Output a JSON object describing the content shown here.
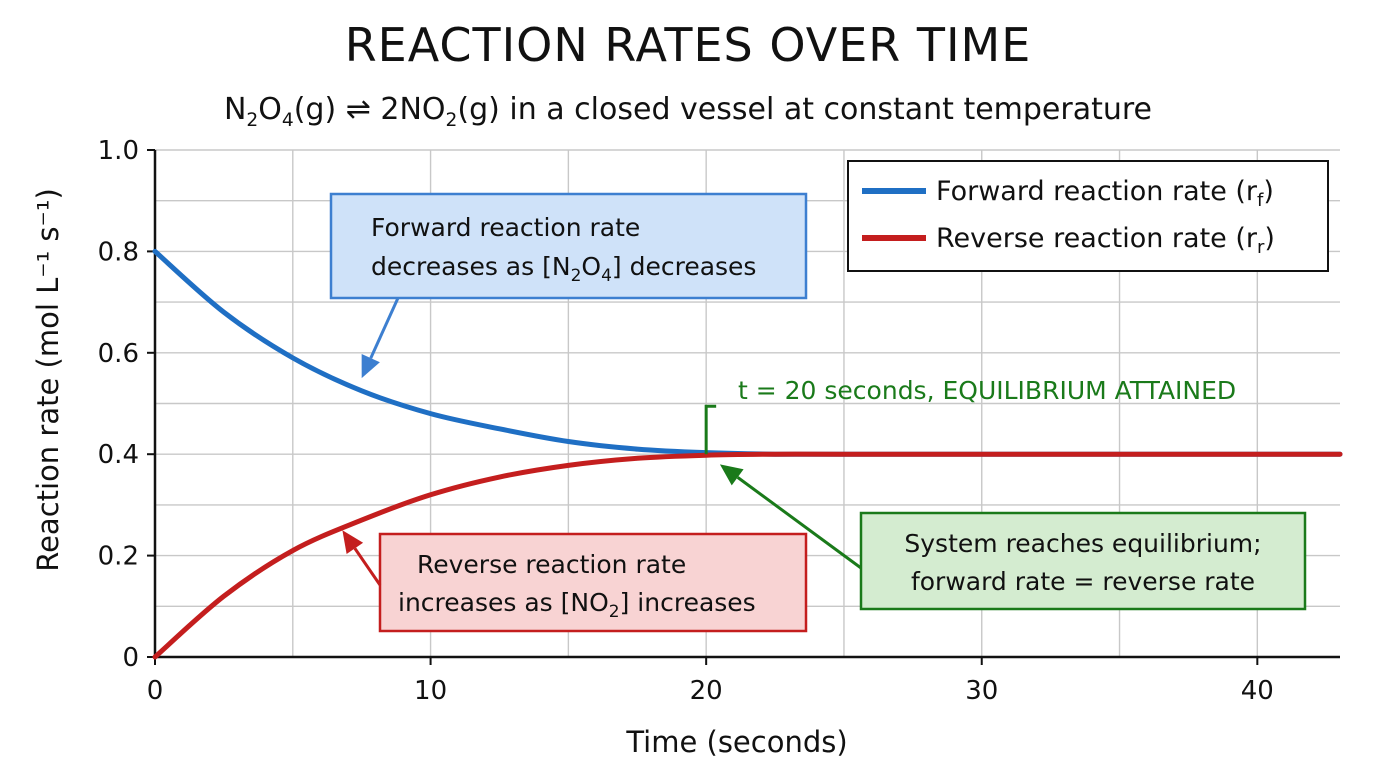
{
  "header": {
    "title": "REACTION RATES OVER TIME",
    "subtitle_html": "N<sub>2</sub>O<sub>4</sub>(g) ⇌ 2NO<sub>2</sub>(g) in a closed vessel at constant temperature"
  },
  "chart_data": {
    "type": "line",
    "title": "REACTION RATES OVER TIME",
    "xlabel": "Time (seconds)",
    "ylabel": "Reaction rate (mol L⁻¹ s⁻¹)",
    "xlim": [
      0,
      43
    ],
    "ylim": [
      0,
      1.0
    ],
    "x_ticks": [
      "0",
      "10",
      "20",
      "30",
      "40"
    ],
    "y_ticks": [
      "0",
      "0.2",
      "0.4",
      "0.6",
      "0.8",
      "1.0"
    ],
    "grid": true,
    "legend_position": "top-right",
    "series": [
      {
        "name": "Forward reaction rate (rf)",
        "color": "#1f6fc4",
        "x": [
          0,
          2.5,
          5,
          7.5,
          10,
          12.5,
          15,
          17.5,
          20,
          22.5,
          25,
          30,
          35,
          40,
          43
        ],
        "y": [
          0.8,
          0.68,
          0.59,
          0.525,
          0.48,
          0.45,
          0.425,
          0.41,
          0.403,
          0.4,
          0.4,
          0.4,
          0.4,
          0.4,
          0.4
        ]
      },
      {
        "name": "Reverse reaction rate (rr)",
        "color": "#c41e1e",
        "x": [
          0,
          2.5,
          5,
          7.5,
          10,
          12.5,
          15,
          17.5,
          20,
          22.5,
          25,
          30,
          35,
          40,
          43
        ],
        "y": [
          0.0,
          0.12,
          0.21,
          0.27,
          0.32,
          0.355,
          0.378,
          0.392,
          0.398,
          0.4,
          0.4,
          0.4,
          0.4,
          0.4,
          0.4
        ]
      }
    ],
    "legend": {
      "forward_main": "Forward reaction rate (r",
      "forward_sub": "f",
      "forward_close": ")",
      "reverse_main": "Reverse reaction rate (r",
      "reverse_sub": "r",
      "reverse_close": ")"
    },
    "annotations": {
      "forward_box": {
        "line1": "Forward reaction rate",
        "line2_a": "decreases as [N",
        "line2_sub1": "2",
        "line2_b": "O",
        "line2_sub2": "4",
        "line2_c": "] decreases",
        "fill": "#cfe2f9",
        "stroke": "#3d7fd0",
        "arrow_target": {
          "x": 7.5,
          "y": 0.55
        }
      },
      "reverse_box": {
        "line1": "Reverse reaction rate",
        "line2_a": "increases as [NO",
        "line2_sub": "2",
        "line2_b": "] increases",
        "fill": "#f8d3d3",
        "stroke": "#c41e1e",
        "arrow_target": {
          "x": 6.8,
          "y": 0.25
        }
      },
      "equilibrium_box": {
        "line1": "System reaches equilibrium;",
        "line2": "forward rate = reverse rate",
        "fill": "#d4ecd0",
        "stroke": "#1a7a1a",
        "arrow_target": {
          "x": 20.5,
          "y": 0.38
        }
      },
      "equilibrium_label": {
        "text": "t = 20 seconds, EQUILIBRIUM ATTAINED",
        "color": "#1a7a1a",
        "at": {
          "x": 20,
          "y": 0.4
        }
      }
    }
  }
}
